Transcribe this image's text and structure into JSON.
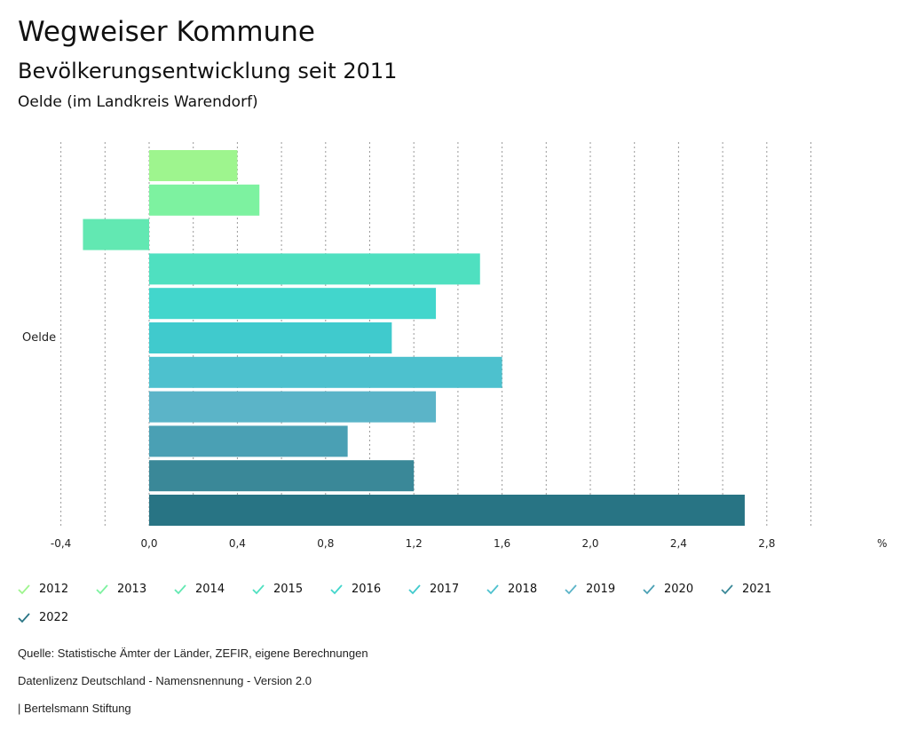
{
  "header": {
    "title": "Wegweiser Kommune",
    "subtitle": "Bevölkerungsentwicklung seit 2011",
    "region": "Oelde (im Landkreis Warendorf)"
  },
  "chart_data": {
    "type": "bar",
    "orientation": "horizontal",
    "category": "Oelde",
    "unit_label": "%",
    "xlim": [
      -0.4,
      3.3
    ],
    "ticks": [
      -0.4,
      0.0,
      0.4,
      0.8,
      1.2,
      1.6,
      2.0,
      2.4,
      2.8
    ],
    "tick_labels": [
      "-0,4",
      "0,0",
      "0,4",
      "0,8",
      "1,2",
      "1,6",
      "2,0",
      "2,4",
      "2,8"
    ],
    "series": [
      {
        "name": "2012",
        "value": 0.4,
        "color": "#9ef58e"
      },
      {
        "name": "2013",
        "value": 0.5,
        "color": "#7df2a0"
      },
      {
        "name": "2014",
        "value": -0.3,
        "color": "#62e8b2"
      },
      {
        "name": "2015",
        "value": 1.5,
        "color": "#4fe0c0"
      },
      {
        "name": "2016",
        "value": 1.3,
        "color": "#42d6cc"
      },
      {
        "name": "2017",
        "value": 1.1,
        "color": "#40cacd"
      },
      {
        "name": "2018",
        "value": 1.6,
        "color": "#4dc1ce"
      },
      {
        "name": "2019",
        "value": 1.3,
        "color": "#5bb4c8"
      },
      {
        "name": "2020",
        "value": 0.9,
        "color": "#4aa0b4"
      },
      {
        "name": "2021",
        "value": 1.2,
        "color": "#3a8898"
      },
      {
        "name": "2022",
        "value": 2.7,
        "color": "#287484"
      }
    ]
  },
  "footer": {
    "source": "Quelle: Statistische Ämter der Länder, ZEFIR, eigene Berechnungen",
    "license": "Datenlizenz Deutschland - Namensnennung - Version 2.0",
    "publisher": "| Bertelsmann Stiftung"
  }
}
